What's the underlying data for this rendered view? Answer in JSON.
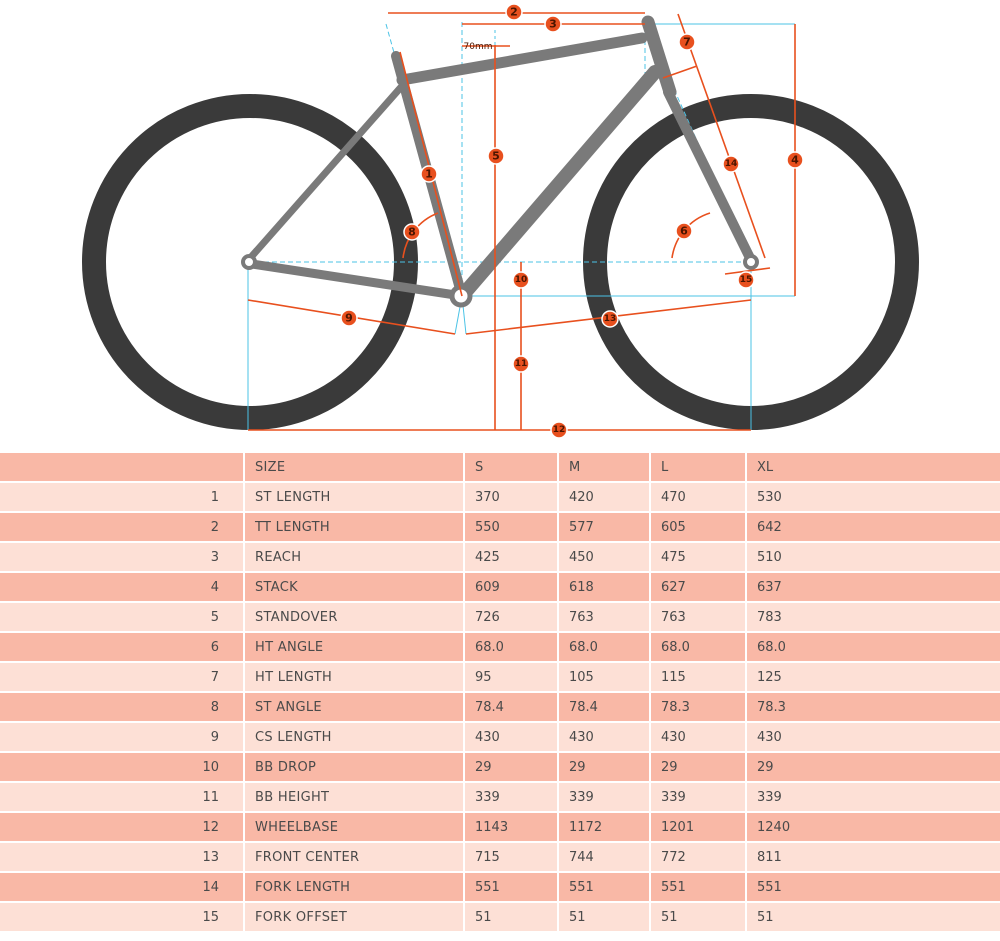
{
  "diagram": {
    "offset_label": "70mm",
    "markers": [
      "1",
      "2",
      "3",
      "4",
      "5",
      "6",
      "7",
      "8",
      "9",
      "10",
      "11",
      "12",
      "13",
      "14",
      "15"
    ],
    "colors": {
      "frame": "#7a7a7a",
      "tire": "#3a3a3a",
      "dimension": "#e8501e",
      "guide": "#4bc3e6"
    }
  },
  "table": {
    "header": {
      "num": "",
      "label": "SIZE",
      "sizes": [
        "S",
        "M",
        "L",
        "XL"
      ]
    },
    "rows": [
      {
        "num": "1",
        "label": "ST LENGTH",
        "values": [
          "370",
          "420",
          "470",
          "530"
        ]
      },
      {
        "num": "2",
        "label": "TT LENGTH",
        "values": [
          "550",
          "577",
          "605",
          "642"
        ]
      },
      {
        "num": "3",
        "label": "REACH",
        "values": [
          "425",
          "450",
          "475",
          "510"
        ]
      },
      {
        "num": "4",
        "label": "STACK",
        "values": [
          "609",
          "618",
          "627",
          "637"
        ]
      },
      {
        "num": "5",
        "label": "STANDOVER",
        "values": [
          "726",
          "763",
          "763",
          "783"
        ]
      },
      {
        "num": "6",
        "label": "HT ANGLE",
        "values": [
          "68.0",
          "68.0",
          "68.0",
          "68.0"
        ]
      },
      {
        "num": "7",
        "label": "HT LENGTH",
        "values": [
          "95",
          "105",
          "115",
          "125"
        ]
      },
      {
        "num": "8",
        "label": "ST ANGLE",
        "values": [
          "78.4",
          "78.4",
          "78.3",
          "78.3"
        ]
      },
      {
        "num": "9",
        "label": "CS LENGTH",
        "values": [
          "430",
          "430",
          "430",
          "430"
        ]
      },
      {
        "num": "10",
        "label": "BB DROP",
        "values": [
          "29",
          "29",
          "29",
          "29"
        ]
      },
      {
        "num": "11",
        "label": "BB HEIGHT",
        "values": [
          "339",
          "339",
          "339",
          "339"
        ]
      },
      {
        "num": "12",
        "label": "WHEELBASE",
        "values": [
          "1143",
          "1172",
          "1201",
          "1240"
        ]
      },
      {
        "num": "13",
        "label": "FRONT CENTER",
        "values": [
          "715",
          "744",
          "772",
          "811"
        ]
      },
      {
        "num": "14",
        "label": "FORK LENGTH",
        "values": [
          "551",
          "551",
          "551",
          "551"
        ]
      },
      {
        "num": "15",
        "label": "FORK OFFSET",
        "values": [
          "51",
          "51",
          "51",
          "51"
        ]
      }
    ]
  }
}
